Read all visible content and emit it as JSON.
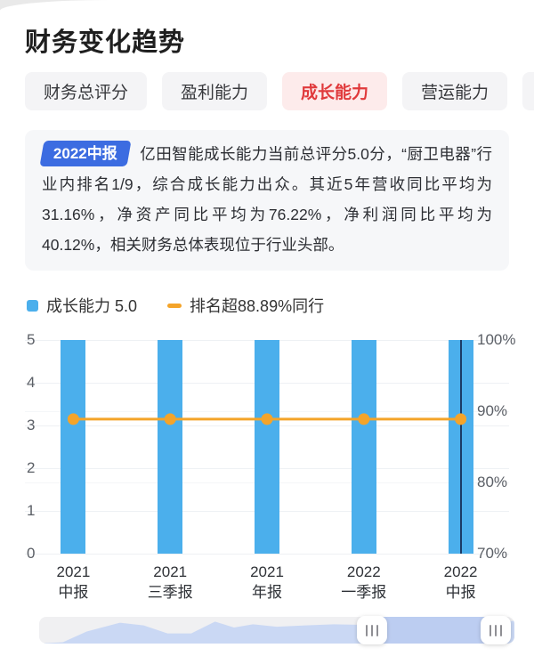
{
  "header": {
    "title": "财务变化趋势"
  },
  "tabs": {
    "items": [
      {
        "id": "tab-finance-score",
        "label": "财务总评分",
        "active": false
      },
      {
        "id": "tab-profitability",
        "label": "盈利能力",
        "active": false
      },
      {
        "id": "tab-growth",
        "label": "成长能力",
        "active": true
      },
      {
        "id": "tab-operation",
        "label": "营运能力",
        "active": false
      }
    ]
  },
  "summary": {
    "badge": "2022中报",
    "text": "亿田智能成长能力当前总评分5.0分，“厨卫电器”行业内排名1/9，综合成长能力出众。其近5年营收同比平均为31.16%，净资产同比平均为76.22%，净利润同比平均为40.12%，相关财务总体表现位于行业头部。"
  },
  "legend": {
    "items": [
      {
        "id": "legend-growth-score",
        "label": "成长能力 5.0",
        "marker": "square",
        "color": "#4bafec"
      },
      {
        "id": "legend-rank-percent",
        "label": "排名超88.89%同行",
        "marker": "dash",
        "color": "#f4a42a"
      }
    ]
  },
  "chart_data": {
    "type": "bar",
    "categories": [
      "2021 中报",
      "2021 三季报",
      "2021 年报",
      "2022 一季报",
      "2022 中报"
    ],
    "category_lines": [
      [
        "2021",
        "中报"
      ],
      [
        "2021",
        "三季报"
      ],
      [
        "2021",
        "年报"
      ],
      [
        "2022",
        "一季报"
      ],
      [
        "2022",
        "中报"
      ]
    ],
    "series": [
      {
        "name": "成长能力",
        "type": "bar",
        "yaxis": "left",
        "color": "#4bafec",
        "values": [
          5.0,
          5.0,
          5.0,
          5.0,
          5.0
        ]
      },
      {
        "name": "排名超同行",
        "type": "line",
        "yaxis": "right",
        "color": "#f4a42a",
        "values": [
          88.89,
          88.89,
          88.89,
          88.89,
          88.89
        ]
      }
    ],
    "left_axis": {
      "min": 0,
      "max": 5,
      "ticks": [
        0,
        1,
        2,
        3,
        4,
        5
      ]
    },
    "right_axis": {
      "min": 70,
      "max": 100,
      "ticks": [
        70,
        80,
        90,
        100
      ],
      "suffix": "%"
    },
    "grid": true,
    "legend_position": "top-left",
    "highlight_index": 4
  },
  "minimap": {
    "area_points": [
      [
        0,
        0
      ],
      [
        5,
        5
      ],
      [
        10,
        45
      ],
      [
        17,
        78
      ],
      [
        22,
        68
      ],
      [
        27,
        38
      ],
      [
        32,
        38
      ],
      [
        37,
        82
      ],
      [
        41,
        60
      ],
      [
        45,
        72
      ],
      [
        50,
        63
      ],
      [
        56,
        68
      ],
      [
        62,
        72
      ],
      [
        68,
        70
      ],
      [
        74,
        72
      ],
      [
        80,
        78
      ],
      [
        85,
        68
      ],
      [
        90,
        72
      ],
      [
        95,
        80
      ],
      [
        100,
        85
      ]
    ],
    "window": [
      70,
      96
    ]
  },
  "colors": {
    "bar": "#4bafec",
    "line": "#f4a42a",
    "pointer": "#1b3b66",
    "badge": "#3c6ce1",
    "tab_active_text": "#e03a3c",
    "tab_active_bg": "#fdebeb",
    "minimap_area": "#cad8f4",
    "minimap_window": "#bccdf1"
  }
}
